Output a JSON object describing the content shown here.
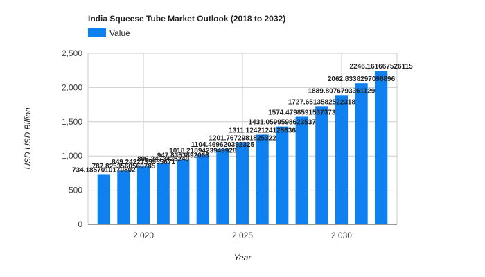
{
  "chart_data": {
    "type": "bar",
    "title": "India Squeese Tube Market Outlook (2018 to 2032)",
    "xlabel": "Year",
    "ylabel": "USD USD Billion",
    "legend": {
      "position": "top-left",
      "entries": [
        "Value"
      ]
    },
    "series": [
      {
        "name": "Value",
        "color": "#0f80f0",
        "x": [
          2018,
          2019,
          2020,
          2021,
          2022,
          2023,
          2024,
          2025,
          2026,
          2027,
          2028,
          2029,
          2030,
          2031,
          2032
        ],
        "values": [
          734.1857010170802,
          787.8253560560785,
          849.2422735955671,
          896.2473425249,
          947.8353892068,
          1018.2189423949928,
          1104.469620392325,
          1201.7672981825322,
          1311.1242124125636,
          1431.0599598623537,
          1574.4798591537374,
          1727.6513582522318,
          1889.8076793361129,
          2062.8338297098894,
          2246.161667526115
        ],
        "labels": [
          "734.1857010170802",
          "787.8253560560785",
          "849.2422735955671",
          "896.2473425249",
          "947.8353892068",
          "1018.2189423949928",
          "1104.469620392325",
          "1201.7672981825322",
          "1311.1242124125636",
          "1431.0599598623537",
          "1574.4798591537373",
          "1727.6513582522318",
          "1889.8076793361129",
          "2062.8338297098896",
          "2246.161667526115"
        ]
      }
    ],
    "xticks": [
      2020,
      2025,
      2030
    ],
    "xtick_labels": [
      "2,020",
      "2,025",
      "2,030"
    ],
    "xlim": [
      2017.2,
      2032.8
    ],
    "yticks": [
      0,
      500,
      1000,
      1500,
      2000,
      2500
    ],
    "ytick_labels": [
      "0",
      "500",
      "1,000",
      "1,500",
      "2,000",
      "2,500"
    ],
    "ylim": [
      0,
      2500
    ],
    "grid": true
  }
}
